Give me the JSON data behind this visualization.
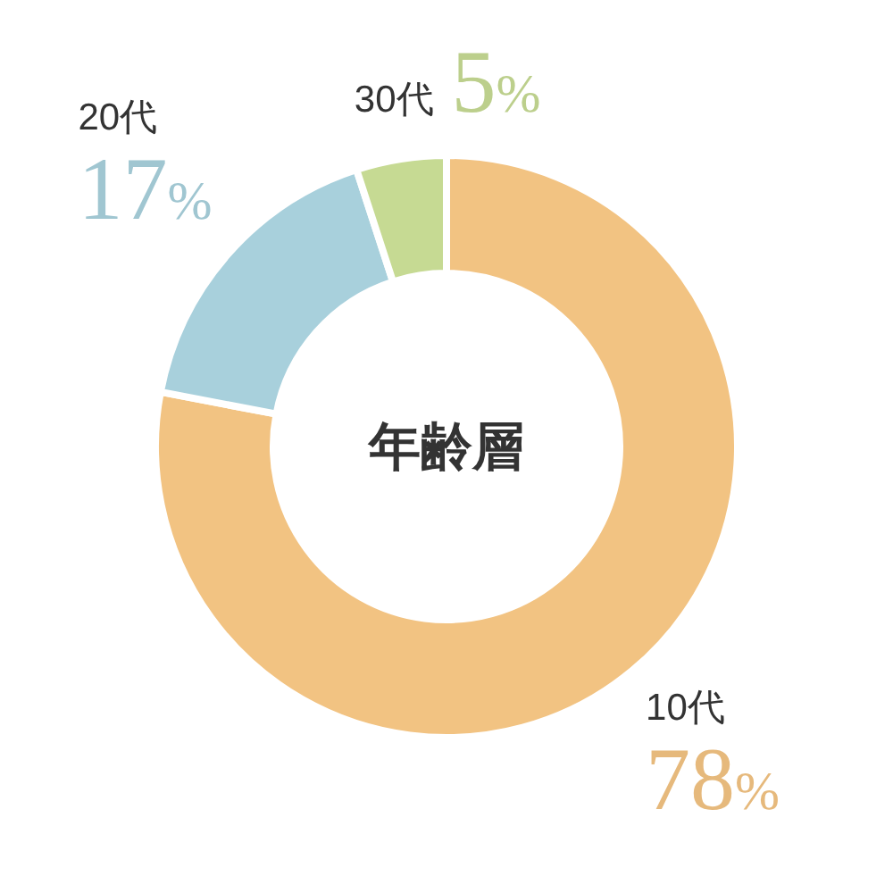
{
  "chart_data": {
    "type": "donut",
    "title": "年齢層",
    "categories": [
      "10代",
      "20代",
      "30代"
    ],
    "values": [
      78,
      17,
      5
    ],
    "colors": [
      "#f2c382",
      "#a8d0dc",
      "#c6da93"
    ],
    "value_labels": [
      "78%",
      "17%",
      "5%"
    ]
  }
}
